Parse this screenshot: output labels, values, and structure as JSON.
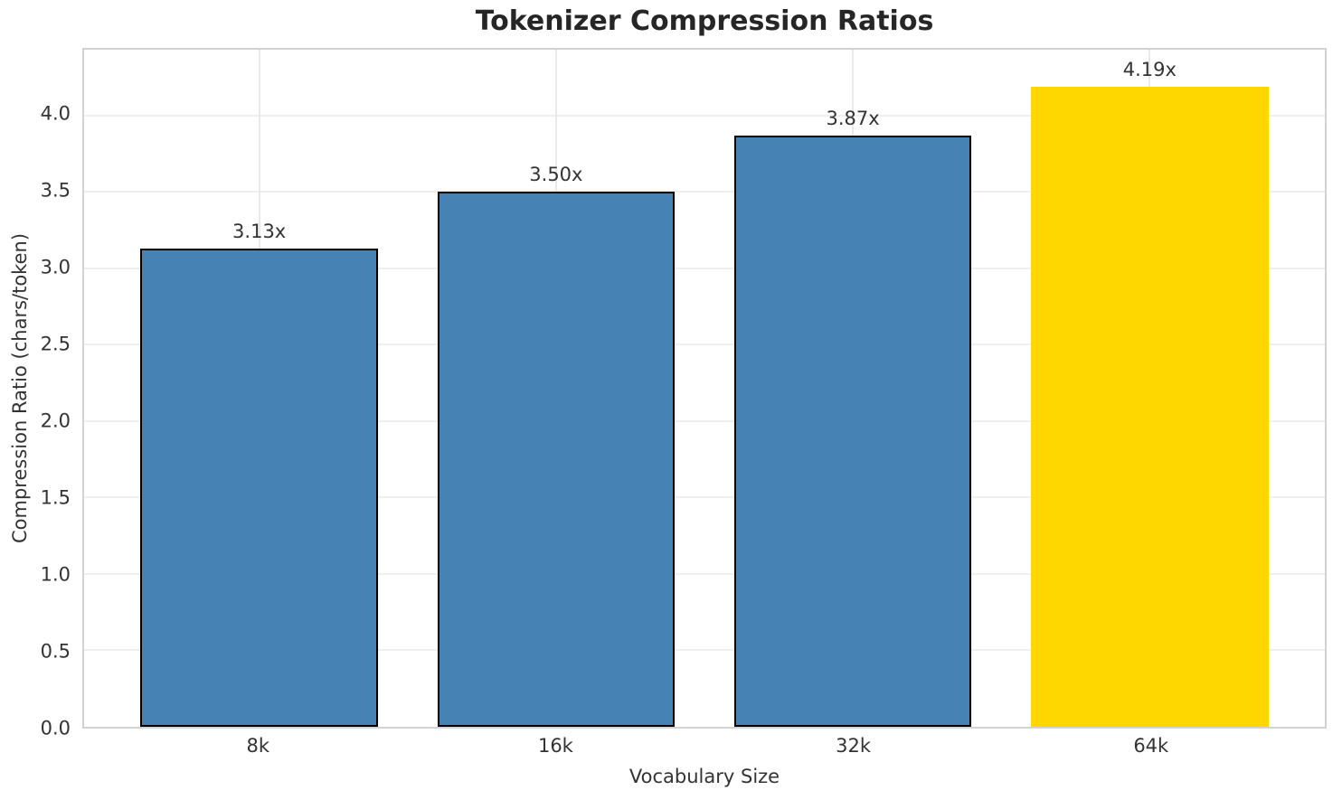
{
  "chart_data": {
    "type": "bar",
    "title": "Tokenizer Compression Ratios",
    "xlabel": "Vocabulary Size",
    "ylabel": "Compression Ratio (chars/token)",
    "categories": [
      "8k",
      "16k",
      "32k",
      "64k"
    ],
    "values": [
      3.13,
      3.5,
      3.87,
      4.19
    ],
    "bar_labels": [
      "3.13x",
      "3.50x",
      "3.87x",
      "4.19x"
    ],
    "ylim": [
      0,
      4.43
    ],
    "yticks": [
      0.0,
      0.5,
      1.0,
      1.5,
      2.0,
      2.5,
      3.0,
      3.5,
      4.0
    ],
    "ytick_labels": [
      "0.0",
      "0.5",
      "1.0",
      "1.5",
      "2.0",
      "2.5",
      "3.0",
      "3.5",
      "4.0"
    ],
    "grid": true,
    "legend": false,
    "bar_colors": [
      "#4682b4",
      "#4682b4",
      "#4682b4",
      "#ffd700"
    ],
    "bar_edge_colors": [
      "#000000",
      "#000000",
      "#000000",
      "none"
    ],
    "colors": {
      "bar_default": "#4682b4",
      "bar_highlight": "#ffd700",
      "bar_edge": "#000000",
      "grid": "#efefef",
      "spine": "#d2d2d2",
      "tick_text": "#333333",
      "title_text": "#262626"
    }
  }
}
